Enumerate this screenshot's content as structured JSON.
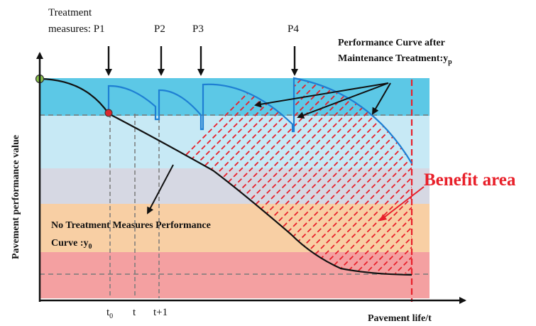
{
  "colors": {
    "band_top": "#5cc8e6",
    "band_light_blue": "#c7e9f5",
    "band_grey": "#d6d8e3",
    "band_orange": "#f8cfa4",
    "band_red": "#f4a0a1",
    "curve_treated": "#1e7fd3",
    "curve_untreated": "#111111",
    "hatch": "#e8202a",
    "benefit_text": "#e8202a",
    "dashed": "#7a7a7a",
    "start_point": "#8bc34a",
    "intersection_point": "#d9282f"
  },
  "labels": {
    "treatment_line1": "Treatment",
    "treatment_line2": "measures: P1",
    "p2": "P2",
    "p3": "P3",
    "p4": "P4",
    "after_line1": "Performance Curve after",
    "after_line2": "Maintenance Treatment:y",
    "after_sub": "p",
    "no_treat_line1": "No Treatment Measures Performance",
    "no_treat_line2": "Curve :y",
    "no_treat_sub": "0",
    "benefit": "Benefit area",
    "y_axis": "Pavement performance value",
    "x_axis": "Pavement life/t",
    "tick_t0": "t",
    "tick_t0_sub": "0",
    "tick_t": "t",
    "tick_t1": "t+1"
  }
}
